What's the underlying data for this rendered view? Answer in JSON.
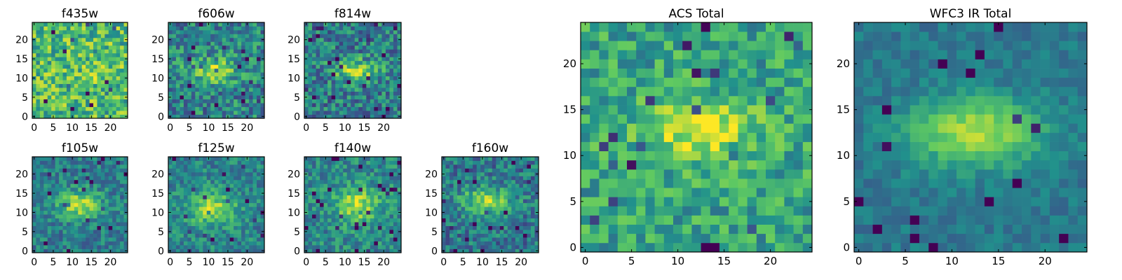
{
  "figure": {
    "background": "#ffffff",
    "colormap": "viridis",
    "colormap_stops": [
      "#440154",
      "#3b528b",
      "#21918c",
      "#5ec962",
      "#fde725"
    ]
  },
  "chart_data": [
    {
      "type": "heatmap",
      "title": "f435w",
      "xlabel": "",
      "ylabel": "",
      "xlim": [
        0,
        24
      ],
      "ylim": [
        0,
        24
      ],
      "xticks": [
        0,
        5,
        10,
        15,
        20
      ],
      "yticks": [
        0,
        5,
        10,
        15,
        20
      ],
      "xtick_labels": [
        "0",
        "5",
        "10",
        "15",
        "20"
      ],
      "ytick_labels": [
        "0",
        "5",
        "10",
        "15",
        "20"
      ],
      "grid": false,
      "legend": "none",
      "grid_size": [
        25,
        25
      ],
      "source": {
        "cx": 17,
        "cy": 11,
        "sx": 3,
        "sy": 2,
        "amp": 0.12
      },
      "background_level": 0.68,
      "noise": 0.26,
      "seed": 11,
      "description": "mostly yellow-green noise with a faint brighter patch near x≈18, y≈11"
    },
    {
      "type": "heatmap",
      "title": "f606w",
      "xlabel": "",
      "ylabel": "",
      "xlim": [
        0,
        24
      ],
      "ylim": [
        0,
        24
      ],
      "xticks": [
        0,
        5,
        10,
        15,
        20
      ],
      "yticks": [
        0,
        5,
        10,
        15,
        20
      ],
      "xtick_labels": [
        "0",
        "5",
        "10",
        "15",
        "20"
      ],
      "ytick_labels": [
        "0",
        "5",
        "10",
        "15",
        "20"
      ],
      "grid": false,
      "legend": "none",
      "grid_size": [
        25,
        25
      ],
      "source": {
        "cx": 11,
        "cy": 12,
        "sx": 4.5,
        "sy": 2.2,
        "amp": 0.42
      },
      "background_level": 0.45,
      "noise": 0.24,
      "seed": 23,
      "description": "elongated bright source centered near x≈11, y≈12"
    },
    {
      "type": "heatmap",
      "title": "f814w",
      "xlabel": "",
      "ylabel": "",
      "xlim": [
        0,
        24
      ],
      "ylim": [
        0,
        24
      ],
      "xticks": [
        0,
        5,
        10,
        15,
        20
      ],
      "yticks": [
        0,
        5,
        10,
        15,
        20
      ],
      "xtick_labels": [
        "0",
        "5",
        "10",
        "15",
        "20"
      ],
      "ytick_labels": [
        "0",
        "5",
        "10",
        "15",
        "20"
      ],
      "grid": false,
      "legend": "none",
      "grid_size": [
        25,
        25
      ],
      "source": {
        "cx": 13,
        "cy": 12,
        "sx": 4,
        "sy": 2,
        "amp": 0.46
      },
      "background_level": 0.42,
      "noise": 0.24,
      "seed": 37,
      "description": "bright elongated source centered near x≈13, y≈12"
    },
    {
      "type": "heatmap",
      "title": "f105w",
      "xlabel": "",
      "ylabel": "",
      "xlim": [
        0,
        24
      ],
      "ylim": [
        0,
        24
      ],
      "xticks": [
        0,
        5,
        10,
        15,
        20
      ],
      "yticks": [
        0,
        5,
        10,
        15,
        20
      ],
      "xtick_labels": [
        "0",
        "5",
        "10",
        "15",
        "20"
      ],
      "ytick_labels": [
        "0",
        "5",
        "10",
        "15",
        "20"
      ],
      "grid": false,
      "legend": "none",
      "grid_size": [
        25,
        25
      ],
      "source": {
        "cx": 12,
        "cy": 12,
        "sx": 4,
        "sy": 2.6,
        "amp": 0.45
      },
      "background_level": 0.42,
      "noise": 0.17,
      "seed": 41,
      "description": "bright source centered near x≈12, y≈12"
    },
    {
      "type": "heatmap",
      "title": "f125w",
      "xlabel": "",
      "ylabel": "",
      "xlim": [
        0,
        24
      ],
      "ylim": [
        0,
        24
      ],
      "xticks": [
        0,
        5,
        10,
        15,
        20
      ],
      "yticks": [
        0,
        5,
        10,
        15,
        20
      ],
      "xtick_labels": [
        "0",
        "5",
        "10",
        "15",
        "20"
      ],
      "ytick_labels": [
        "0",
        "5",
        "10",
        "15",
        "20"
      ],
      "grid": false,
      "legend": "none",
      "grid_size": [
        25,
        25
      ],
      "source": {
        "cx": 11,
        "cy": 11,
        "sx": 4.5,
        "sy": 3,
        "amp": 0.4
      },
      "background_level": 0.45,
      "noise": 0.17,
      "seed": 53,
      "description": "diffuse bright source centered near x≈11, y≈11"
    },
    {
      "type": "heatmap",
      "title": "f140w",
      "xlabel": "",
      "ylabel": "",
      "xlim": [
        0,
        24
      ],
      "ylim": [
        0,
        24
      ],
      "xticks": [
        0,
        5,
        10,
        15,
        20
      ],
      "yticks": [
        0,
        5,
        10,
        15,
        20
      ],
      "xtick_labels": [
        "0",
        "5",
        "10",
        "15",
        "20"
      ],
      "ytick_labels": [
        "0",
        "5",
        "10",
        "15",
        "20"
      ],
      "grid": false,
      "legend": "none",
      "grid_size": [
        25,
        25
      ],
      "source": {
        "cx": 13,
        "cy": 12,
        "sx": 4,
        "sy": 3,
        "amp": 0.42
      },
      "background_level": 0.47,
      "noise": 0.18,
      "seed": 67,
      "description": "bright source centered near x≈13, y≈12"
    },
    {
      "type": "heatmap",
      "title": "f160w",
      "xlabel": "",
      "ylabel": "",
      "xlim": [
        0,
        24
      ],
      "ylim": [
        0,
        24
      ],
      "xticks": [
        0,
        5,
        10,
        15,
        20
      ],
      "yticks": [
        0,
        5,
        10,
        15,
        20
      ],
      "xtick_labels": [
        "0",
        "5",
        "10",
        "15",
        "20"
      ],
      "ytick_labels": [
        "0",
        "5",
        "10",
        "15",
        "20"
      ],
      "grid": false,
      "legend": "none",
      "grid_size": [
        25,
        25
      ],
      "source": {
        "cx": 11,
        "cy": 13,
        "sx": 4.5,
        "sy": 2.5,
        "amp": 0.45
      },
      "background_level": 0.4,
      "noise": 0.2,
      "seed": 79,
      "description": "bright source centered near x≈11, y≈13"
    },
    {
      "type": "heatmap",
      "title": "ACS Total",
      "xlabel": "",
      "ylabel": "",
      "xlim": [
        0,
        24
      ],
      "ylim": [
        0,
        24
      ],
      "xticks": [
        0,
        5,
        10,
        15,
        20
      ],
      "yticks": [
        0,
        5,
        10,
        15,
        20
      ],
      "xtick_labels": [
        "0",
        "5",
        "10",
        "15",
        "20"
      ],
      "ytick_labels": [
        "0",
        "5",
        "10",
        "15",
        "20"
      ],
      "grid": false,
      "legend": "none",
      "grid_size": [
        25,
        25
      ],
      "source": {
        "cx": 12.5,
        "cy": 12.5,
        "sx": 4.5,
        "sy": 2.2,
        "amp": 0.38
      },
      "background_level": 0.58,
      "noise": 0.2,
      "seed": 97,
      "description": "combined ACS image, bright elongated source centered near x≈12, y≈12.5"
    },
    {
      "type": "heatmap",
      "title": "WFC3 IR Total",
      "xlabel": "",
      "ylabel": "",
      "xlim": [
        0,
        24
      ],
      "ylim": [
        0,
        24
      ],
      "xticks": [
        0,
        5,
        10,
        15,
        20
      ],
      "yticks": [
        0,
        5,
        10,
        15,
        20
      ],
      "xtick_labels": [
        "0",
        "5",
        "10",
        "15",
        "20"
      ],
      "ytick_labels": [
        "0",
        "5",
        "10",
        "15",
        "20"
      ],
      "grid": false,
      "legend": "none",
      "grid_size": [
        25,
        25
      ],
      "source": {
        "cx": 12.5,
        "cy": 12.5,
        "sx": 5,
        "sy": 2.6,
        "amp": 0.5
      },
      "background_level": 0.4,
      "noise": 0.09,
      "seed": 113,
      "description": "combined WFC3 IR image, smooth bright elongated source centered near x≈12.5, y≈12.5"
    }
  ]
}
